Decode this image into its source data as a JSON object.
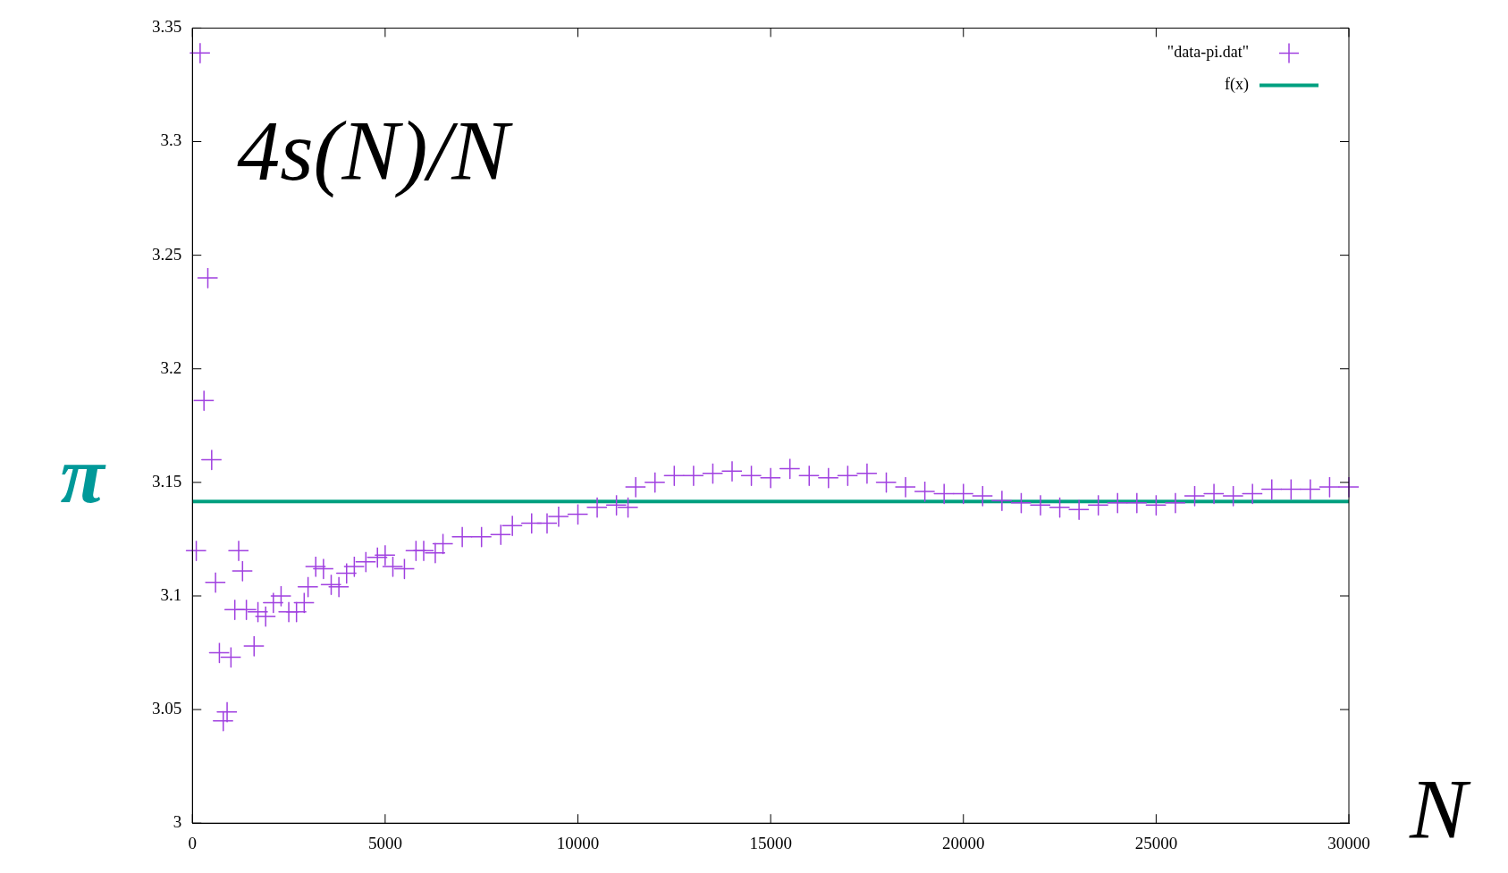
{
  "chart_data": {
    "type": "scatter",
    "annotations": [
      "4s(N)/N"
    ],
    "xlabel": "N",
    "ylabel": "π",
    "xlim": [
      0,
      30000
    ],
    "ylim": [
      3,
      3.35
    ],
    "xticks": [
      0,
      5000,
      10000,
      15000,
      20000,
      25000,
      30000
    ],
    "yticks": [
      3,
      3.05,
      3.1,
      3.15,
      3.2,
      3.25,
      3.3,
      3.35
    ],
    "legend": "top right",
    "marker": "cross",
    "grid": false,
    "series": [
      {
        "name": "\"data-pi.dat\"",
        "color": "#a040e0",
        "x": [
          100,
          200,
          300,
          400,
          500,
          600,
          700,
          800,
          900,
          1000,
          1100,
          1200,
          1300,
          1400,
          1600,
          1700,
          1900,
          2100,
          2300,
          2500,
          2700,
          2900,
          3000,
          3200,
          3400,
          3600,
          3800,
          4000,
          4200,
          4500,
          4800,
          5000,
          5200,
          5500,
          5800,
          6000,
          6300,
          6500,
          7000,
          7500,
          8000,
          8300,
          8800,
          9200,
          9500,
          10000,
          10500,
          11000,
          11300,
          11500,
          12000,
          12500,
          13000,
          13500,
          14000,
          14500,
          15000,
          15500,
          16000,
          16500,
          17000,
          17500,
          18000,
          18500,
          19000,
          19500,
          20000,
          20500,
          21000,
          21500,
          22000,
          22500,
          23000,
          23500,
          24000,
          24500,
          25000,
          25500,
          26000,
          26500,
          27000,
          27500,
          28000,
          28500,
          29000,
          29500,
          30000
        ],
        "values": [
          3.12,
          3.339,
          3.186,
          3.24,
          3.16,
          3.106,
          3.075,
          3.045,
          3.049,
          3.073,
          3.094,
          3.12,
          3.111,
          3.094,
          3.078,
          3.093,
          3.091,
          3.097,
          3.1,
          3.093,
          3.093,
          3.097,
          3.104,
          3.113,
          3.112,
          3.105,
          3.104,
          3.11,
          3.113,
          3.115,
          3.117,
          3.118,
          3.113,
          3.112,
          3.12,
          3.12,
          3.119,
          3.123,
          3.126,
          3.126,
          3.127,
          3.131,
          3.132,
          3.132,
          3.135,
          3.136,
          3.139,
          3.14,
          3.139,
          3.148,
          3.15,
          3.153,
          3.153,
          3.154,
          3.155,
          3.153,
          3.152,
          3.156,
          3.153,
          3.152,
          3.153,
          3.154,
          3.15,
          3.148,
          3.146,
          3.145,
          3.145,
          3.144,
          3.142,
          3.141,
          3.14,
          3.139,
          3.138,
          3.14,
          3.141,
          3.141,
          3.14,
          3.141,
          3.144,
          3.145,
          3.144,
          3.145,
          3.147,
          3.147,
          3.147,
          3.148,
          3.148
        ]
      },
      {
        "name": "f(x)",
        "type": "line",
        "marker": "none",
        "color": "#00a080",
        "x": [
          0,
          30000
        ],
        "values": [
          3.1416,
          3.1416
        ]
      }
    ]
  }
}
